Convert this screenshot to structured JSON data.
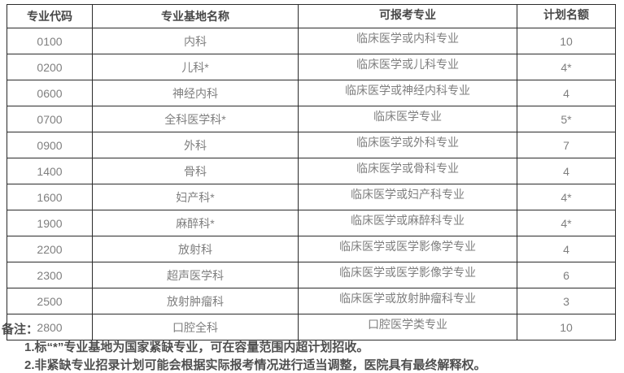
{
  "table": {
    "headers": [
      "专业代码",
      "专业基地名称",
      "可报考专业",
      "计划名额"
    ],
    "rows": [
      [
        "0100",
        "内科",
        "临床医学或内科专业",
        "10"
      ],
      [
        "0200",
        "儿科*",
        "临床医学或儿科专业",
        "4*"
      ],
      [
        "0600",
        "神经内科",
        "临床医学或神经内科专业",
        "4"
      ],
      [
        "0700",
        "全科医学科*",
        "临床医学专业",
        "5*"
      ],
      [
        "0900",
        "外科",
        "临床医学或外科专业",
        "7"
      ],
      [
        "1400",
        "骨科",
        "临床医学或骨科专业",
        "4"
      ],
      [
        "1600",
        "妇产科*",
        "临床医学或妇产科专业",
        "4*"
      ],
      [
        "1900",
        "麻醉科*",
        "临床医学或麻醉科专业",
        "4*"
      ],
      [
        "2200",
        "放射科",
        "临床医学或医学影像学专业",
        "4"
      ],
      [
        "2300",
        "超声医学科",
        "临床医学或医学影像学专业",
        "6"
      ],
      [
        "2500",
        "放射肿瘤科",
        "临床医学或放射肿瘤科专业",
        "3"
      ],
      [
        "2800",
        "口腔全科",
        "口腔医学类专业",
        "10"
      ]
    ]
  },
  "notes": {
    "title": "备注：",
    "items": [
      "1.标“*”专业基地为国家紧缺专业，可在容量范围内超计划招收。",
      "2.非紧缺专业招录计划可能会根据实际报考情况进行适当调整，医院具有最终解释权。"
    ]
  },
  "colors": {
    "border": "#2b2b2b",
    "header_text": "#474747",
    "body_text": "#7f7f7f",
    "notes_text": "#4f4f4f",
    "background": "#ffffff"
  }
}
